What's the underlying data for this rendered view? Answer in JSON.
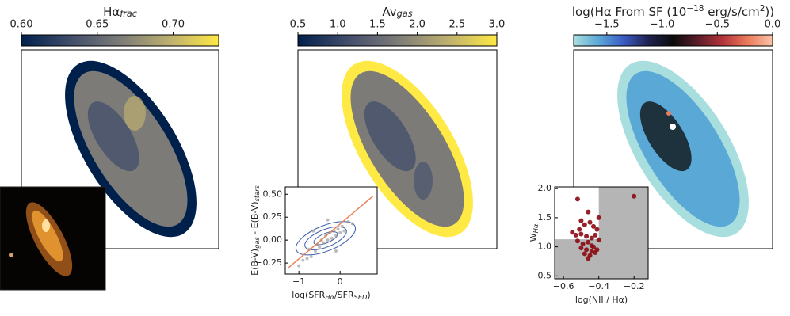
{
  "chart_data": [
    {
      "type": "map",
      "title": [
        {
          "text": "Hα"
        },
        {
          "text": "frac",
          "sub": true
        }
      ],
      "clim": [
        0.6,
        0.73
      ],
      "cticks": [
        {
          "value": 0.6,
          "label": "0.60"
        },
        {
          "value": 0.65,
          "label": "0.65"
        },
        {
          "value": 0.7,
          "label": "0.70"
        }
      ],
      "colormap": [
        "#00204c",
        "#414d6b",
        "#7c7b78",
        "#bcaf6f",
        "#ffe945"
      ]
    },
    {
      "type": "map",
      "title": [
        {
          "text": "Av"
        },
        {
          "text": "gas",
          "sub": true
        }
      ],
      "clim": [
        0.5,
        3.0
      ],
      "cticks": [
        0.5,
        {
          "value": 1.0,
          "label": "1.0"
        },
        1.5,
        {
          "value": 2.0,
          "label": "2.0"
        },
        2.5,
        {
          "value": 3.0,
          "label": "3.0"
        }
      ],
      "colormap": [
        "#00204c",
        "#414d6b",
        "#7c7b78",
        "#bcaf6f",
        "#ffe945"
      ]
    },
    {
      "type": "map",
      "title": [
        {
          "text": "log(Hα From SF (10"
        },
        {
          "text": "−18",
          "sup": true
        },
        {
          "text": " erg/s/cm"
        },
        {
          "text": "2",
          "sup": true
        },
        {
          "text": "))"
        }
      ],
      "clim": [
        -1.8,
        0.0
      ],
      "cticks": [
        {
          "value": -1.5,
          "label": "−1.5"
        },
        {
          "value": -1.0,
          "label": "−1.0"
        },
        {
          "value": -0.5,
          "label": "−0.5"
        },
        {
          "value": 0.0,
          "label": "0.0"
        }
      ],
      "colormap": [
        "#a8dede",
        "#5aa8d6",
        "#3b5cc4",
        "#1f2250",
        "#0b0b0b",
        "#5c1d2a",
        "#b3343b",
        "#ec7b5c",
        "#f9c3a8"
      ]
    },
    {
      "type": "scatter",
      "xlabel": [
        {
          "text": "log(SFR"
        },
        {
          "text": "Hα",
          "sub": true
        },
        {
          "text": "/SFR"
        },
        {
          "text": "SED",
          "sub": true
        },
        {
          "text": ")"
        }
      ],
      "ylabel": [
        {
          "text": "E(B-V)"
        },
        {
          "text": "gas",
          "sub": true
        },
        {
          "text": " - E(B-V)"
        },
        {
          "text": "stars",
          "sub": true
        }
      ],
      "xlim": [
        -1.33,
        0.9
      ],
      "xticks": [
        {
          "value": -1,
          "label": "−1"
        },
        0
      ],
      "ylim": [
        -0.37,
        0.58
      ],
      "yticks": [
        {
          "value": -0.25,
          "label": "−0.25"
        },
        {
          "value": 0,
          "label": "0.00"
        },
        {
          "value": 0.25,
          "label": "0.25"
        },
        {
          "value": 0.5,
          "label": "0.50"
        }
      ],
      "series": [
        {
          "color": "#8f8f8f",
          "x": [
            -1.0,
            -0.9,
            -0.8,
            -0.75,
            -0.7,
            -0.6,
            -0.55,
            -0.5,
            -0.45,
            -0.4,
            -0.35,
            -0.3,
            -0.25,
            -0.2,
            -0.15,
            -0.1,
            -0.05,
            0.0,
            0.05,
            0.1,
            0.2,
            0.3,
            -0.65,
            -0.3,
            -0.1
          ],
          "y": [
            -0.28,
            -0.22,
            -0.2,
            -0.1,
            -0.18,
            -0.12,
            -0.05,
            -0.08,
            0.0,
            -0.03,
            0.05,
            0.0,
            0.08,
            0.02,
            0.1,
            0.05,
            0.12,
            0.08,
            0.15,
            0.1,
            0.2,
            0.18,
            0.1,
            0.22,
            -0.12
          ]
        }
      ],
      "fit": {
        "color": "#e5845a",
        "x": [
          -1.25,
          0.8
        ],
        "y": [
          -0.3,
          0.48
        ]
      }
    },
    {
      "type": "scatter",
      "xlabel": [
        {
          "text": "log(NII / Hα)"
        }
      ],
      "ylabel": [
        {
          "text": "W"
        },
        {
          "text": "Hα",
          "sub": true
        }
      ],
      "xlim": [
        -0.65,
        -0.12
      ],
      "xticks": [
        {
          "value": -0.6,
          "label": "−0.6"
        },
        {
          "value": -0.4,
          "label": "−0.4"
        },
        {
          "value": -0.2,
          "label": "−0.2"
        }
      ],
      "ylim": [
        0.45,
        2.03
      ],
      "yticks": [
        0.5,
        {
          "value": 1.0,
          "label": "1.0"
        },
        1.5,
        {
          "value": 2.0,
          "label": "2.0"
        }
      ],
      "shade": {
        "color": "#b5b5b5",
        "x": -0.4,
        "y": 1.13
      },
      "series": [
        {
          "color": "#8b0a12",
          "x": [
            -0.2,
            -0.52,
            -0.4,
            -0.46,
            -0.5,
            -0.48,
            -0.45,
            -0.43,
            -0.41,
            -0.55,
            -0.53,
            -0.5,
            -0.47,
            -0.44,
            -0.42,
            -0.4,
            -0.52,
            -0.49,
            -0.46,
            -0.43,
            -0.5,
            -0.47,
            -0.44,
            -0.41,
            -0.48,
            -0.45,
            -0.42,
            -0.46,
            -0.44,
            -0.51
          ],
          "y": [
            1.87,
            1.82,
            1.5,
            1.6,
            1.45,
            1.38,
            1.42,
            1.35,
            1.3,
            1.25,
            1.2,
            1.22,
            1.18,
            1.15,
            1.2,
            1.12,
            1.1,
            1.05,
            1.08,
            1.0,
            0.98,
            0.95,
            0.92,
            0.95,
            0.88,
            0.85,
            0.9,
            0.8,
            1.02,
            1.3
          ]
        }
      ]
    }
  ]
}
